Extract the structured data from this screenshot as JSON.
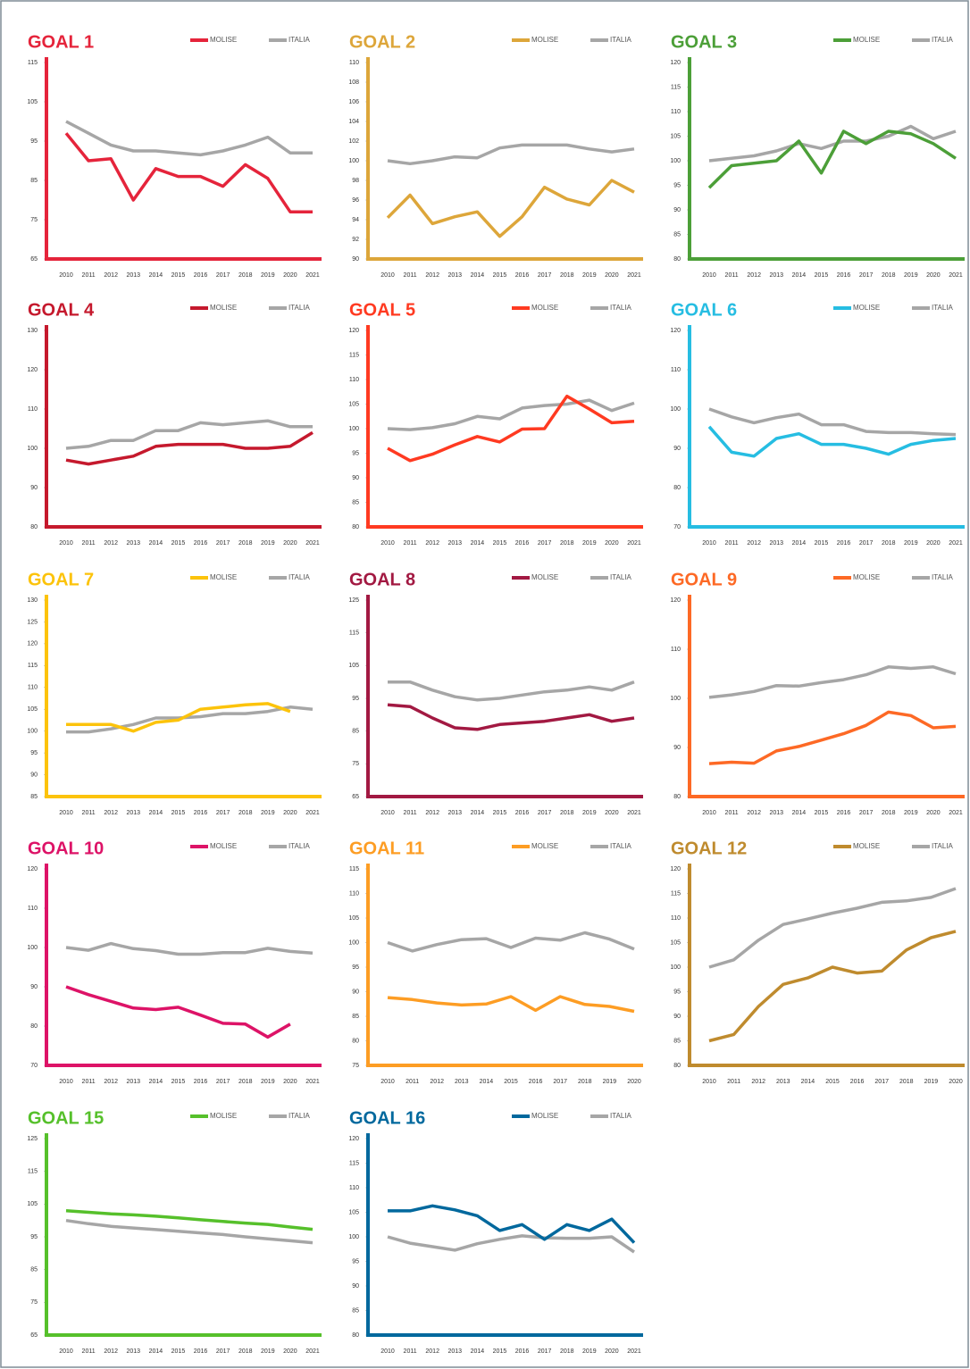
{
  "chart_data": [
    {
      "type": "line",
      "title": "GOAL 1",
      "categories": [
        "2010",
        "2011",
        "2012",
        "2013",
        "2014",
        "2015",
        "2016",
        "2017",
        "2018",
        "2019",
        "2020",
        "2021"
      ],
      "series": [
        {
          "name": "MOLISE",
          "color": "#e5243b",
          "values": [
            97,
            90,
            90.5,
            80,
            88,
            86,
            86,
            83.5,
            89,
            85.5,
            77,
            77
          ]
        },
        {
          "name": "ITALIA",
          "color": "#a6a6a6",
          "values": [
            100,
            97,
            94,
            92.5,
            92.5,
            92,
            91.5,
            92.5,
            94,
            96,
            92,
            92
          ]
        }
      ],
      "ylim": [
        65,
        115
      ],
      "yticks": [
        65,
        75,
        85,
        95,
        105,
        115
      ]
    },
    {
      "type": "line",
      "title": "GOAL 2",
      "categories": [
        "2010",
        "2011",
        "2012",
        "2013",
        "2014",
        "2015",
        "2016",
        "2017",
        "2018",
        "2019",
        "2020",
        "2021"
      ],
      "series": [
        {
          "name": "MOLISE",
          "color": "#dda63a",
          "values": [
            94.2,
            96.5,
            93.6,
            94.3,
            94.8,
            92.3,
            94.3,
            97.3,
            96.1,
            95.5,
            98,
            96.8
          ]
        },
        {
          "name": "ITALIA",
          "color": "#a6a6a6",
          "values": [
            100,
            99.7,
            100,
            100.4,
            100.3,
            101.3,
            101.6,
            101.6,
            101.6,
            101.2,
            100.9,
            101.2
          ]
        }
      ],
      "ylim": [
        90,
        110
      ],
      "yticks": [
        90,
        92,
        94,
        96,
        98,
        100,
        102,
        104,
        106,
        108,
        110
      ]
    },
    {
      "type": "line",
      "title": "GOAL 3",
      "categories": [
        "2010",
        "2011",
        "2012",
        "2013",
        "2014",
        "2015",
        "2016",
        "2017",
        "2018",
        "2019",
        "2020",
        "2021"
      ],
      "series": [
        {
          "name": "MOLISE",
          "color": "#4c9f38",
          "values": [
            94.5,
            99,
            99.5,
            100,
            104,
            97.5,
            106,
            103.5,
            106,
            105.5,
            103.5,
            100.5
          ]
        },
        {
          "name": "ITALIA",
          "color": "#a6a6a6",
          "values": [
            100,
            100.5,
            101,
            102,
            103.5,
            102.5,
            104,
            104,
            105,
            107,
            104.5,
            106
          ]
        }
      ],
      "ylim": [
        80,
        120
      ],
      "yticks": [
        80,
        85,
        90,
        95,
        100,
        105,
        110,
        115,
        120
      ]
    },
    {
      "type": "line",
      "title": "GOAL 4",
      "categories": [
        "2010",
        "2011",
        "2012",
        "2013",
        "2014",
        "2015",
        "2016",
        "2017",
        "2018",
        "2019",
        "2020",
        "2021"
      ],
      "series": [
        {
          "name": "MOLISE",
          "color": "#c5192d",
          "values": [
            97,
            96,
            97,
            98,
            100.5,
            101,
            101,
            101,
            100,
            100,
            100.5,
            104
          ]
        },
        {
          "name": "ITALIA",
          "color": "#a6a6a6",
          "values": [
            100,
            100.5,
            102,
            102,
            104.5,
            104.5,
            106.5,
            106,
            106.5,
            107,
            105.5,
            105.5
          ]
        }
      ],
      "ylim": [
        80,
        130
      ],
      "yticks": [
        80,
        90,
        100,
        110,
        120,
        130
      ]
    },
    {
      "type": "line",
      "title": "GOAL 5",
      "categories": [
        "2010",
        "2011",
        "2012",
        "2013",
        "2014",
        "2015",
        "2016",
        "2017",
        "2018",
        "2019",
        "2020",
        "2021"
      ],
      "series": [
        {
          "name": "MOLISE",
          "color": "#ff3a21",
          "values": [
            96,
            93.5,
            94.8,
            96.7,
            98.4,
            97.3,
            99.9,
            100,
            106.6,
            104,
            101.2,
            101.5
          ]
        },
        {
          "name": "ITALIA",
          "color": "#a6a6a6",
          "values": [
            100,
            99.8,
            100.2,
            101,
            102.5,
            102,
            104.2,
            104.7,
            105,
            105.8,
            103.7,
            105.2
          ]
        }
      ],
      "ylim": [
        80,
        120
      ],
      "yticks": [
        80,
        85,
        90,
        95,
        100,
        105,
        110,
        115,
        120
      ]
    },
    {
      "type": "line",
      "title": "GOAL 6",
      "categories": [
        "2010",
        "2011",
        "2012",
        "2013",
        "2014",
        "2015",
        "2016",
        "2017",
        "2018",
        "2019",
        "2020",
        "2021"
      ],
      "series": [
        {
          "name": "MOLISE",
          "color": "#26bde2",
          "values": [
            95.5,
            89,
            88,
            92.5,
            93.7,
            91,
            91,
            90,
            88.5,
            91,
            92,
            92.5
          ]
        },
        {
          "name": "ITALIA",
          "color": "#a6a6a6",
          "values": [
            100,
            98,
            96.5,
            97.8,
            98.7,
            96,
            96,
            94.3,
            94,
            94,
            93.7,
            93.5
          ]
        }
      ],
      "ylim": [
        70,
        120
      ],
      "yticks": [
        70,
        80,
        90,
        100,
        110,
        120
      ]
    },
    {
      "type": "line",
      "title": "GOAL 7",
      "categories": [
        "2010",
        "2011",
        "2012",
        "2013",
        "2014",
        "2015",
        "2016",
        "2017",
        "2018",
        "2019",
        "2020",
        "2021"
      ],
      "series": [
        {
          "name": "MOLISE",
          "color": "#fcc30b",
          "values": [
            101.5,
            101.5,
            101.5,
            100,
            102,
            102.5,
            105,
            105.5,
            106,
            106.3,
            104.5,
            null
          ]
        },
        {
          "name": "ITALIA",
          "color": "#a6a6a6",
          "values": [
            99.8,
            99.8,
            100.5,
            101.5,
            103,
            103,
            103.3,
            104,
            104,
            104.5,
            105.5,
            105
          ]
        }
      ],
      "ylim": [
        85,
        130
      ],
      "yticks": [
        85,
        90,
        95,
        100,
        105,
        110,
        115,
        120,
        125,
        130
      ]
    },
    {
      "type": "line",
      "title": "GOAL 8",
      "categories": [
        "2010",
        "2011",
        "2012",
        "2013",
        "2014",
        "2015",
        "2016",
        "2017",
        "2018",
        "2019",
        "2020",
        "2021"
      ],
      "series": [
        {
          "name": "MOLISE",
          "color": "#a21942",
          "values": [
            93,
            92.5,
            89,
            86,
            85.5,
            87,
            87.5,
            88,
            89,
            90,
            88,
            89
          ]
        },
        {
          "name": "ITALIA",
          "color": "#a6a6a6",
          "values": [
            100,
            100,
            97.5,
            95.5,
            94.5,
            95,
            96,
            97,
            97.5,
            98.5,
            97.5,
            100
          ]
        }
      ],
      "ylim": [
        65,
        125
      ],
      "yticks": [
        65,
        75,
        85,
        95,
        105,
        115,
        125
      ]
    },
    {
      "type": "line",
      "title": "GOAL 9",
      "categories": [
        "2010",
        "2011",
        "2012",
        "2013",
        "2014",
        "2015",
        "2016",
        "2017",
        "2018",
        "2019",
        "2020",
        "2021"
      ],
      "series": [
        {
          "name": "MOLISE",
          "color": "#fd6925",
          "values": [
            86.7,
            87,
            86.8,
            89.3,
            90.2,
            91.5,
            92.8,
            94.5,
            97.2,
            96.5,
            94,
            94.3
          ]
        },
        {
          "name": "ITALIA",
          "color": "#a6a6a6",
          "values": [
            100.2,
            100.7,
            101.4,
            102.6,
            102.5,
            103.2,
            103.8,
            104.8,
            106.4,
            106.1,
            106.4,
            105
          ]
        }
      ],
      "ylim": [
        80,
        120
      ],
      "yticks": [
        80,
        90,
        100,
        110,
        120
      ]
    },
    {
      "type": "line",
      "title": "GOAL 10",
      "categories": [
        "2010",
        "2011",
        "2012",
        "2013",
        "2014",
        "2015",
        "2016",
        "2017",
        "2018",
        "2019",
        "2020",
        "2021"
      ],
      "series": [
        {
          "name": "MOLISE",
          "color": "#dd1367",
          "values": [
            90,
            88,
            86.3,
            84.6,
            84.2,
            84.8,
            82.8,
            80.7,
            80.5,
            77.2,
            80.5,
            null
          ]
        },
        {
          "name": "ITALIA",
          "color": "#a6a6a6",
          "values": [
            100,
            99.3,
            101,
            99.7,
            99.2,
            98.3,
            98.3,
            98.7,
            98.7,
            99.8,
            99,
            98.6
          ]
        }
      ],
      "ylim": [
        70,
        120
      ],
      "yticks": [
        70,
        80,
        90,
        100,
        110,
        120
      ]
    },
    {
      "type": "line",
      "title": "GOAL 11",
      "categories": [
        "2010",
        "2011",
        "2012",
        "2013",
        "2014",
        "2015",
        "2016",
        "2017",
        "2018",
        "2019",
        "2020"
      ],
      "series": [
        {
          "name": "MOLISE",
          "color": "#fd9d24",
          "values": [
            88.8,
            88.4,
            87.7,
            87.3,
            87.5,
            89,
            86.2,
            89,
            87.4,
            87,
            86
          ]
        },
        {
          "name": "ITALIA",
          "color": "#a6a6a6",
          "values": [
            100,
            98.3,
            99.6,
            100.6,
            100.8,
            99,
            100.9,
            100.5,
            102,
            100.7,
            98.7
          ]
        }
      ],
      "ylim": [
        75,
        115
      ],
      "yticks": [
        75,
        80,
        85,
        90,
        95,
        100,
        105,
        110,
        115
      ]
    },
    {
      "type": "line",
      "title": "GOAL 12",
      "categories": [
        "2010",
        "2011",
        "2012",
        "2013",
        "2014",
        "2015",
        "2016",
        "2017",
        "2018",
        "2019",
        "2020"
      ],
      "series": [
        {
          "name": "MOLISE",
          "color": "#bf8b2e",
          "values": [
            85,
            86.3,
            92,
            96.5,
            97.8,
            100,
            98.8,
            99.2,
            103.5,
            106,
            107.3
          ]
        },
        {
          "name": "ITALIA",
          "color": "#a6a6a6",
          "values": [
            100,
            101.5,
            105.5,
            108.7,
            109.8,
            111,
            112,
            113.2,
            113.5,
            114.2,
            116
          ]
        }
      ],
      "ylim": [
        80,
        120
      ],
      "yticks": [
        80,
        85,
        90,
        95,
        100,
        105,
        110,
        115,
        120
      ]
    },
    {
      "type": "line",
      "title": "GOAL 15",
      "categories": [
        "2010",
        "2011",
        "2012",
        "2013",
        "2014",
        "2015",
        "2016",
        "2017",
        "2018",
        "2019",
        "2020",
        "2021"
      ],
      "series": [
        {
          "name": "MOLISE",
          "color": "#56c02b",
          "values": [
            103,
            102.5,
            102,
            101.7,
            101.3,
            100.8,
            100.2,
            99.7,
            99.2,
            98.8,
            98,
            97.3
          ]
        },
        {
          "name": "ITALIA",
          "color": "#a6a6a6",
          "values": [
            100,
            99,
            98.2,
            97.7,
            97.2,
            96.7,
            96.2,
            95.7,
            95,
            94.4,
            93.8,
            93.2
          ]
        }
      ],
      "ylim": [
        65,
        125
      ],
      "yticks": [
        65,
        75,
        85,
        95,
        105,
        115,
        125
      ]
    },
    {
      "type": "line",
      "title": "GOAL 16",
      "categories": [
        "2010",
        "2011",
        "2012",
        "2013",
        "2014",
        "2015",
        "2016",
        "2017",
        "2018",
        "2019",
        "2020",
        "2021"
      ],
      "series": [
        {
          "name": "MOLISE",
          "color": "#00689d",
          "values": [
            105.3,
            105.3,
            106.3,
            105.5,
            104.3,
            101.3,
            102.5,
            99.5,
            102.5,
            101.3,
            103.6,
            98.8
          ]
        },
        {
          "name": "ITALIA",
          "color": "#a6a6a6",
          "values": [
            100,
            98.7,
            98,
            97.3,
            98.6,
            99.5,
            100.2,
            99.8,
            99.7,
            99.7,
            100,
            96.9
          ]
        }
      ],
      "ylim": [
        80,
        120
      ],
      "yticks": [
        80,
        85,
        90,
        95,
        100,
        105,
        110,
        115,
        120
      ]
    }
  ]
}
